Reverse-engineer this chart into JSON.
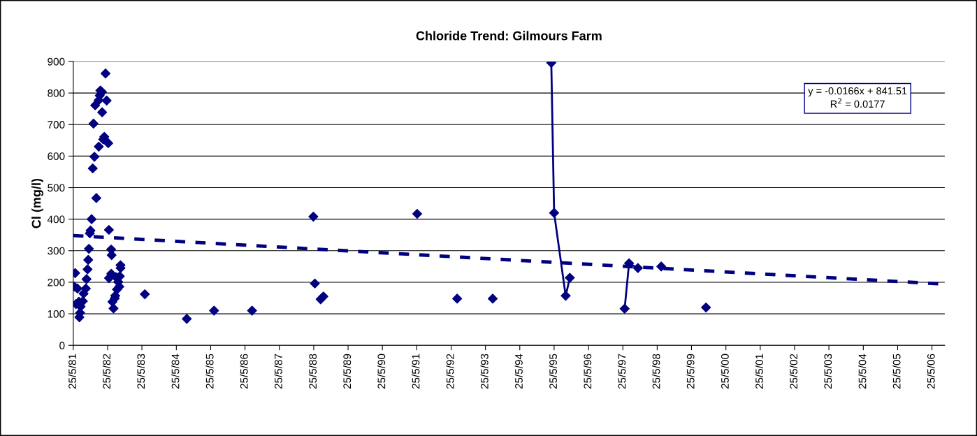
{
  "chart_data": {
    "type": "scatter",
    "title": "Chloride Trend: Gilmours Farm",
    "ylabel": "Cl (mg/l)",
    "ylim": [
      0,
      900
    ],
    "yticks": [
      0,
      100,
      200,
      300,
      400,
      500,
      600,
      700,
      800,
      900
    ],
    "xlim": [
      "1981-05-25",
      "2006-10-08"
    ],
    "xticks": [
      {
        "value": "1981-05-25",
        "label": "25/5/81"
      },
      {
        "value": "1982-05-25",
        "label": "25/5/82"
      },
      {
        "value": "1983-05-25",
        "label": "25/5/83"
      },
      {
        "value": "1984-05-25",
        "label": "25/5/84"
      },
      {
        "value": "1985-05-25",
        "label": "25/5/85"
      },
      {
        "value": "1986-05-25",
        "label": "25/5/86"
      },
      {
        "value": "1987-05-25",
        "label": "25/5/87"
      },
      {
        "value": "1988-05-25",
        "label": "25/5/88"
      },
      {
        "value": "1989-05-25",
        "label": "25/5/89"
      },
      {
        "value": "1990-05-25",
        "label": "25/5/90"
      },
      {
        "value": "1991-05-25",
        "label": "25/5/91"
      },
      {
        "value": "1992-05-25",
        "label": "25/5/92"
      },
      {
        "value": "1993-05-25",
        "label": "25/5/93"
      },
      {
        "value": "1994-05-25",
        "label": "25/5/94"
      },
      {
        "value": "1995-05-25",
        "label": "25/5/95"
      },
      {
        "value": "1996-05-25",
        "label": "25/5/96"
      },
      {
        "value": "1997-05-25",
        "label": "25/5/97"
      },
      {
        "value": "1998-05-25",
        "label": "25/5/98"
      },
      {
        "value": "1999-05-25",
        "label": "25/5/99"
      },
      {
        "value": "2000-05-25",
        "label": "25/5/00"
      },
      {
        "value": "2001-05-25",
        "label": "25/5/01"
      },
      {
        "value": "2002-05-25",
        "label": "25/5/02"
      },
      {
        "value": "2003-05-25",
        "label": "25/5/03"
      },
      {
        "value": "2004-05-25",
        "label": "25/5/04"
      },
      {
        "value": "2005-05-25",
        "label": "25/5/05"
      },
      {
        "value": "2006-05-25",
        "label": "25/5/06"
      }
    ],
    "grid": "y",
    "annotations": [
      "y = -0.0166x + 841.51",
      "R$^{2}$ = 0.0177"
    ],
    "series": [
      {
        "color": "#000080",
        "marker": "diamond",
        "x": [
          "1981-06-07",
          "1981-06-14",
          "1981-06-23",
          "1981-07-08",
          "1981-07-24",
          "1981-07-29",
          "1981-08-06",
          "1981-08-11",
          "1981-09-04",
          "1981-09-12",
          "1981-10-06",
          "1981-10-13",
          "1981-10-24",
          "1981-10-31",
          "1981-11-07",
          "1981-11-17",
          "1981-11-24",
          "1981-12-06",
          "1981-12-18",
          "1981-12-26",
          "1982-01-05",
          "1982-01-13",
          "1982-01-25",
          "1982-02-19",
          "1982-02-20",
          "1982-03-02",
          "1982-03-09",
          "1982-03-27",
          "1982-03-28",
          "1982-04-08",
          "1982-04-20",
          "1982-05-03",
          "1982-05-15",
          "1982-06-01",
          "1982-06-08",
          "1982-06-09",
          "1982-07-02",
          "1982-07-03",
          "1982-07-07",
          "1982-07-15",
          "1982-07-27",
          "1982-08-09",
          "1982-08-14",
          "1982-08-22",
          "1982-09-02",
          "1982-09-15",
          "1982-09-27",
          "1982-10-02",
          "1982-10-09",
          "1982-10-10",
          "1983-06-25",
          "1984-09-13",
          "1985-06-30",
          "1986-08-08",
          "1988-05-21",
          "1988-06-06",
          "1988-08-06",
          "1988-09-05",
          "1991-05-30",
          "1992-07-28",
          "1993-08-10",
          "1998-07-07",
          "1999-10-26"
        ],
        "values": [
          186,
          229,
          131,
          180,
          138,
          89,
          103,
          123,
          140,
          164,
          180,
          210,
          241,
          271,
          306,
          355,
          364,
          400,
          561,
          703,
          598,
          761,
          467,
          777,
          630,
          792,
          808,
          803,
          739,
          653,
          661,
          862,
          776,
          641,
          366,
          213,
          304,
          227,
          286,
          138,
          117,
          149,
          157,
          216,
          177,
          201,
          186,
          219,
          254,
          245,
          162,
          84,
          110,
          110,
          408,
          196,
          146,
          155,
          417,
          148,
          148,
          250,
          120
        ]
      },
      {
        "type": "line",
        "color": "#000080",
        "marker": "diamond",
        "line_style": "solid",
        "x": [
          "1995-04-25",
          "1995-05-25",
          "1995-09-25",
          "1995-11-08"
        ],
        "values": [
          896,
          420,
          157,
          214
        ]
      },
      {
        "type": "line",
        "color": "#000080",
        "marker": "diamond",
        "line_style": "solid",
        "x": [
          "1997-06-13",
          "1997-07-30",
          "1997-11-01"
        ],
        "values": [
          116,
          260,
          245
        ]
      },
      {
        "type": "line",
        "color": "#000080",
        "marker": "none",
        "line_style": "dashed",
        "x": [
          "1981-05-25",
          "2006-10-08"
        ],
        "values": [
          348,
          194
        ]
      }
    ]
  }
}
